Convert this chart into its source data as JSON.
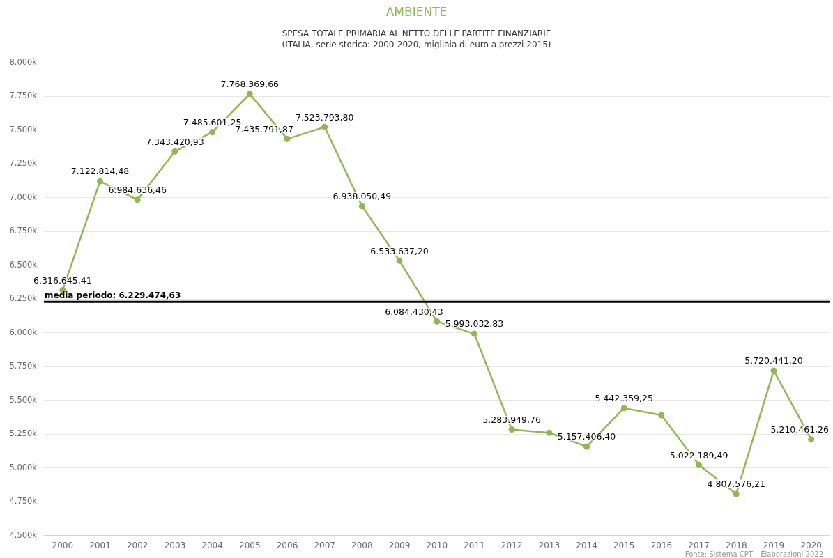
{
  "chart_data": {
    "type": "line",
    "title": "AMBIENTE",
    "subtitle": "SPESA TOTALE PRIMARIA AL NETTO DELLE PARTITE FINANZIARIE\n(ITALIA, serie storica: 2000-2020, migliaia di euro a prezzi 2015)",
    "categories": [
      "2000",
      "2001",
      "2002",
      "2003",
      "2004",
      "2005",
      "2006",
      "2007",
      "2008",
      "2009",
      "2010",
      "2011",
      "2012",
      "2013",
      "2014",
      "2015",
      "2016",
      "2017",
      "2018",
      "2019",
      "2020"
    ],
    "values": [
      6316645.41,
      7122814.48,
      6984636.46,
      7343420.93,
      7485601.25,
      7768369.66,
      7435791.87,
      7523793.8,
      6938050.49,
      6533637.2,
      6084430.43,
      5993032.83,
      5283949.76,
      5260000,
      5157406.4,
      5442359.25,
      5390000,
      5022189.49,
      4807576.21,
      5720441.2,
      5210461.26
    ],
    "value_labels": [
      "6.316.645,41",
      "7.122.814,48",
      "6.984.636,46",
      "7.343.420,93",
      "7.485.601,25",
      "7.768.369,66",
      "7.435.791,87",
      "7.523.793,80",
      "6.938.050,49",
      "6.533.637,20",
      "6.084.430,43",
      "5.993.032,83",
      "5.283.949,76",
      null,
      "5.157.406,40",
      "5.442.359,25",
      null,
      "5.022.189,49",
      "4.807.576,21",
      "5.720.441,20",
      "5.210.461,26"
    ],
    "color": "#8fb755",
    "ylim": [
      4500000,
      8000000
    ],
    "yticks": [
      {
        "value": 4500000,
        "label": "4.500k"
      },
      {
        "value": 4750000,
        "label": "4.750k"
      },
      {
        "value": 5000000,
        "label": "5.000k"
      },
      {
        "value": 5250000,
        "label": "5.250k"
      },
      {
        "value": 5500000,
        "label": "5.500k"
      },
      {
        "value": 5750000,
        "label": "5.750k"
      },
      {
        "value": 6000000,
        "label": "6.000k"
      },
      {
        "value": 6250000,
        "label": "6.250k"
      },
      {
        "value": 6500000,
        "label": "6.500k"
      },
      {
        "value": 6750000,
        "label": "6.750k"
      },
      {
        "value": 7000000,
        "label": "7.000k"
      },
      {
        "value": 7250000,
        "label": "7.250k"
      },
      {
        "value": 7500000,
        "label": "7.500k"
      },
      {
        "value": 7750000,
        "label": "7.750k"
      },
      {
        "value": 8000000,
        "label": "8.000k"
      }
    ],
    "grid": "y",
    "marker": "circle",
    "line_style": "solid",
    "ref_lines": [
      {
        "axis": "y",
        "value": 6229474.63,
        "label": "media periodo: 6.229.474,63",
        "color": "#000000"
      }
    ],
    "annotations": [
      "Fonte: Sistema CPT – Elaborazioni 2022"
    ]
  }
}
